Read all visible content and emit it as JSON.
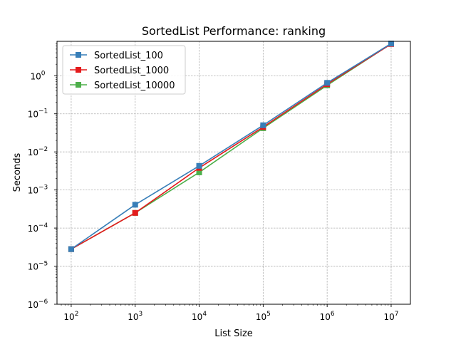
{
  "chart_data": {
    "type": "line",
    "title": "SortedList Performance: ranking",
    "xlabel": "List Size",
    "ylabel": "Seconds",
    "xscale": "log",
    "yscale": "log",
    "xlim": [
      60,
      20000000
    ],
    "ylim": [
      1e-06,
      8
    ],
    "x": [
      100,
      1000,
      10000,
      100000,
      1000000,
      10000000
    ],
    "x_ticks": [
      {
        "base": "10",
        "exp": "2"
      },
      {
        "base": "10",
        "exp": "3"
      },
      {
        "base": "10",
        "exp": "4"
      },
      {
        "base": "10",
        "exp": "5"
      },
      {
        "base": "10",
        "exp": "6"
      },
      {
        "base": "10",
        "exp": "7"
      }
    ],
    "y_ticks": [
      {
        "base": "10",
        "exp": "−6"
      },
      {
        "base": "10",
        "exp": "−5"
      },
      {
        "base": "10",
        "exp": "−4"
      },
      {
        "base": "10",
        "exp": "−3"
      },
      {
        "base": "10",
        "exp": "−2"
      },
      {
        "base": "10",
        "exp": "−1"
      },
      {
        "base": "10",
        "exp": "0"
      }
    ],
    "grid": true,
    "legend_position": "top-left",
    "series": [
      {
        "name": "SortedList_100",
        "color": "#377eb8",
        "marker": "square",
        "values": [
          2.8e-05,
          0.00041,
          0.0043,
          0.05,
          0.65,
          7.0
        ]
      },
      {
        "name": "SortedList_1000",
        "color": "#e41a1c",
        "marker": "square",
        "values": [
          2.8e-05,
          0.00025,
          0.0038,
          0.045,
          0.6,
          6.8
        ]
      },
      {
        "name": "SortedList_10000",
        "color": "#4daf4a",
        "marker": "square",
        "values": [
          2.8e-05,
          0.00025,
          0.0029,
          0.042,
          0.56,
          6.9
        ]
      }
    ]
  }
}
